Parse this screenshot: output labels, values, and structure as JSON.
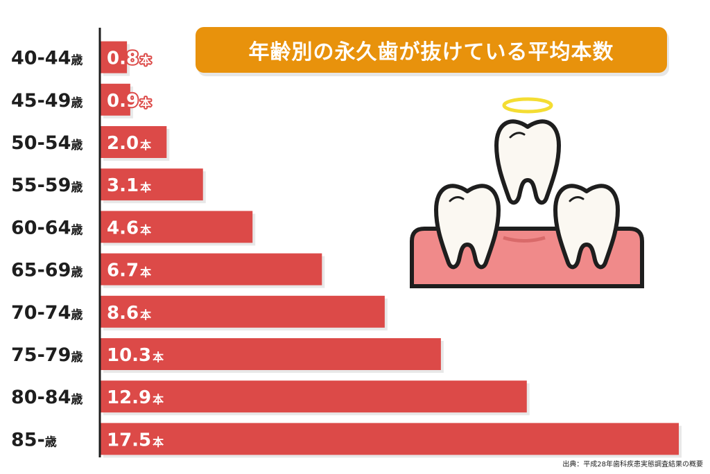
{
  "chart_data": {
    "type": "bar",
    "orientation": "horizontal",
    "title": "年齢別の永久歯が抜けている平均本数",
    "categories": [
      "40-44歳",
      "45-49歳",
      "50-54歳",
      "55-59歳",
      "60-64歳",
      "65-69歳",
      "70-74歳",
      "75-79歳",
      "80-84歳",
      "85-歳"
    ],
    "values": [
      0.8,
      0.9,
      2.0,
      3.1,
      4.6,
      6.7,
      8.6,
      10.3,
      12.9,
      17.5
    ],
    "value_labels": [
      "0.8",
      "0.9",
      "2.0",
      "3.1",
      "4.6",
      "6.7",
      "8.6",
      "10.3",
      "12.9",
      "17.5"
    ],
    "unit": "本",
    "xlim": [
      0,
      17.5
    ],
    "grid": false,
    "colors": {
      "bar": "#dc4a48",
      "bar_shadow": "#e8e8e8",
      "axis": "#1e1e1e",
      "title_bg": "#e8920c"
    }
  },
  "source": "出典：平成28年歯科疾患実態調査結果の概要",
  "illustration": {
    "icon": "teeth-with-halo-icon"
  }
}
